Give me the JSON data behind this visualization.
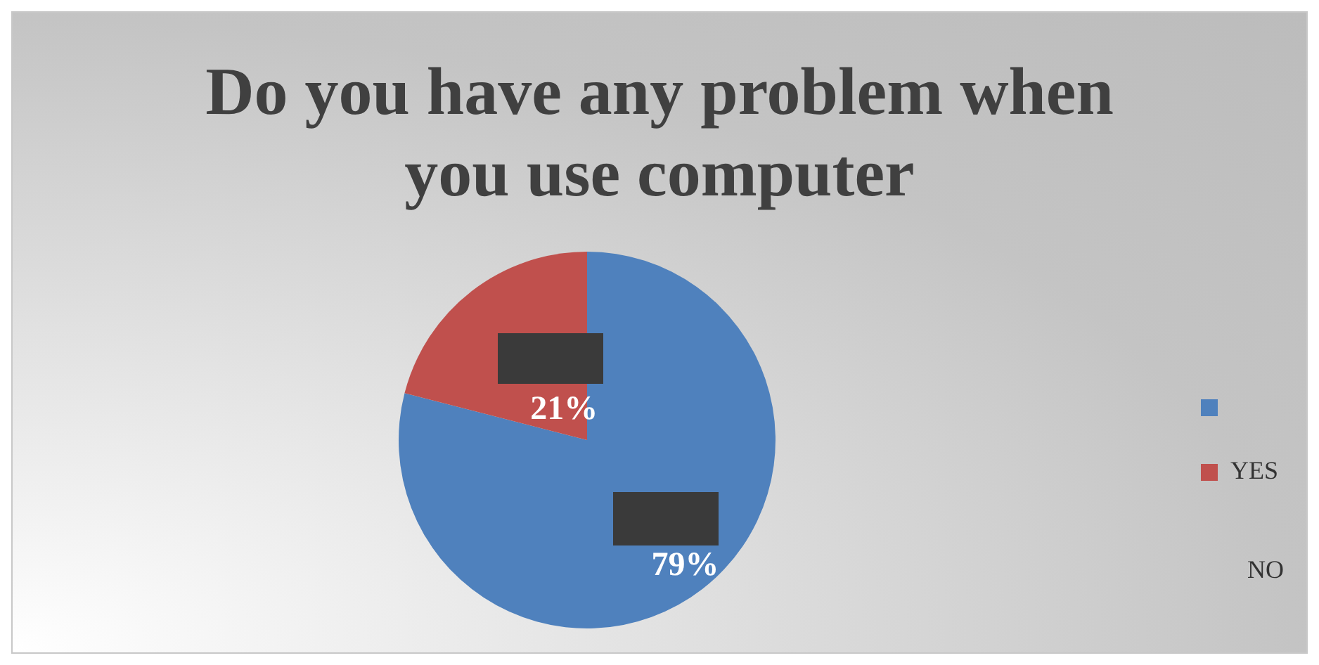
{
  "chart_data": {
    "type": "pie",
    "title": "Do you have any problem when you use computer",
    "categories": [
      null,
      "YES"
    ],
    "values": [
      79,
      21
    ],
    "colors": [
      "#4f81bd",
      "#c0504d"
    ],
    "value_labels": [
      "79%",
      "21%"
    ],
    "legend": "right",
    "annotations": [
      "NO"
    ]
  }
}
